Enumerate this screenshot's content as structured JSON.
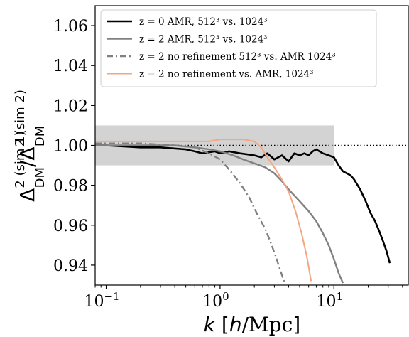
{
  "chart_data": {
    "type": "line",
    "title": "",
    "xlabel": "k [h/Mpc]",
    "ylabel": "Δ²(sim1)DM / Δ²(sim2)DM",
    "x_scale": "log",
    "xlim": [
      0.08,
      45
    ],
    "ylim": [
      0.93,
      1.07
    ],
    "x_ticks": [
      {
        "value": 0.1,
        "label": "10",
        "exp": "−1"
      },
      {
        "value": 1,
        "label": "10",
        "exp": "0"
      },
      {
        "value": 10,
        "label": "10",
        "exp": "1"
      }
    ],
    "y_ticks": [
      {
        "value": 0.94,
        "label": "0.94"
      },
      {
        "value": 0.96,
        "label": "0.96"
      },
      {
        "value": 0.98,
        "label": "0.98"
      },
      {
        "value": 1.0,
        "label": "1.00"
      },
      {
        "value": 1.02,
        "label": "1.02"
      },
      {
        "value": 1.04,
        "label": "1.04"
      },
      {
        "value": 1.06,
        "label": "1.06"
      }
    ],
    "shaded_band": {
      "x": [
        0.08,
        10
      ],
      "y": [
        0.99,
        1.01
      ],
      "color": "#d3d3d3"
    },
    "reference_line": {
      "y": 1.0,
      "style": "dotted",
      "color": "#000000"
    },
    "grid": false,
    "legend_position": "top-left",
    "series": [
      {
        "name": "z = 0 AMR, 512³ vs. 1024³",
        "color": "#000000",
        "style": "solid",
        "width": 2.6,
        "x": [
          0.08,
          0.1,
          0.2,
          0.3,
          0.5,
          0.6,
          0.7,
          0.9,
          1.0,
          1.2,
          1.5,
          2.0,
          2.3,
          2.6,
          3.0,
          3.5,
          4.0,
          4.5,
          5.0,
          5.5,
          6.0,
          6.5,
          7.0,
          8.0,
          9.0,
          10.0,
          11.0,
          12.0,
          13.0,
          14.0,
          15.0,
          17.0,
          19.0,
          21.0,
          23.0,
          25.0,
          27.0,
          29.0,
          31.0
        ],
        "y": [
          1.0,
          1.0,
          0.999,
          0.999,
          0.998,
          0.997,
          0.996,
          0.997,
          0.996,
          0.997,
          0.996,
          0.995,
          0.994,
          0.996,
          0.993,
          0.995,
          0.992,
          0.996,
          0.995,
          0.996,
          0.995,
          0.997,
          0.998,
          0.996,
          0.995,
          0.994,
          0.99,
          0.987,
          0.986,
          0.985,
          0.983,
          0.978,
          0.972,
          0.966,
          0.962,
          0.957,
          0.952,
          0.947,
          0.941
        ]
      },
      {
        "name": "z = 2 AMR, 512³ vs. 1024³",
        "color": "#808080",
        "style": "solid",
        "width": 2.4,
        "x": [
          0.08,
          0.2,
          0.4,
          0.6,
          0.8,
          1.0,
          1.3,
          1.6,
          2.0,
          2.5,
          3.0,
          3.5,
          4.0,
          5.0,
          6.0,
          7.0,
          8.0,
          9.0,
          10.0,
          11.0,
          12.0
        ],
        "y": [
          1.0,
          1.0,
          1.0,
          0.999,
          0.998,
          0.997,
          0.995,
          0.993,
          0.991,
          0.989,
          0.986,
          0.982,
          0.978,
          0.972,
          0.967,
          0.962,
          0.956,
          0.95,
          0.943,
          0.936,
          0.931
        ]
      },
      {
        "name": "z = 2 no refinement 512³ vs. AMR 1024³",
        "color": "#808080",
        "style": "dashdot",
        "width": 2.4,
        "x": [
          0.08,
          0.2,
          0.4,
          0.6,
          0.8,
          1.0,
          1.2,
          1.5,
          1.8,
          2.1,
          2.5,
          2.8,
          3.1,
          3.4,
          3.7
        ],
        "y": [
          1.001,
          1.001,
          1.0,
          0.999,
          0.996,
          0.993,
          0.988,
          0.981,
          0.974,
          0.966,
          0.958,
          0.951,
          0.944,
          0.937,
          0.931
        ]
      },
      {
        "name": "z = 2 no refinement vs. AMR, 1024³",
        "color": "#f4a582",
        "style": "solid",
        "width": 2.0,
        "x": [
          0.08,
          0.2,
          0.4,
          0.6,
          0.8,
          1.0,
          1.3,
          1.6,
          2.0,
          2.3,
          2.6,
          3.0,
          3.4,
          4.0,
          4.6,
          5.2,
          5.8,
          6.3
        ],
        "y": [
          1.002,
          1.002,
          1.002,
          1.002,
          1.002,
          1.003,
          1.003,
          1.003,
          1.002,
          0.999,
          0.994,
          0.989,
          0.984,
          0.977,
          0.967,
          0.956,
          0.944,
          0.932
        ]
      }
    ]
  }
}
